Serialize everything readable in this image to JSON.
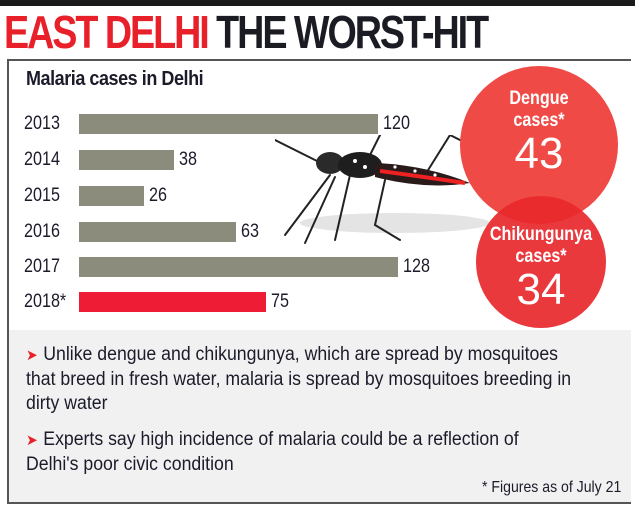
{
  "headline": {
    "highlight": "EAST DELHI",
    "rest": "THE WORST-HIT"
  },
  "colors": {
    "accent_red": "#e8202a",
    "bar_gray": "#8c8c7c",
    "bar_highlight": "#ee1c34",
    "circle_red": "#ef4a45",
    "text_dark": "#1b1b2a",
    "notes_bg": "#f1f1f1"
  },
  "chart_data": {
    "type": "bar",
    "orientation": "horizontal",
    "title": "Malaria cases in Delhi",
    "categories": [
      "2013",
      "2014",
      "2015",
      "2016",
      "2017",
      "2018*"
    ],
    "values": [
      120,
      38,
      26,
      63,
      128,
      75
    ],
    "highlight_index": 5,
    "xlabel": "",
    "ylabel": "",
    "xlim": [
      0,
      128
    ],
    "grid": false,
    "data_labels": true,
    "callouts": [
      {
        "label": "Dengue cases*",
        "value": 43
      },
      {
        "label": "Chikungunya cases*",
        "value": 34
      }
    ],
    "footnote": "* Figures as of July 21"
  },
  "callouts": {
    "dengue": {
      "line1": "Dengue",
      "line2": "cases*",
      "value": "43"
    },
    "chikungunya": {
      "line1": "Chikungunya",
      "line2": "cases*",
      "value": "34"
    }
  },
  "notes": [
    "Unlike dengue and chikungunya, which are spread by mosquitoes that breed in fresh water, malaria is spread by mosquitoes breeding in dirty water",
    "Experts say high incidence of malaria could be a reflection of Delhi's poor civic condition"
  ],
  "icons": {
    "bullet": "arrow-right-icon",
    "illustration": "mosquito-illustration"
  },
  "footnote": "* Figures as of July 21"
}
